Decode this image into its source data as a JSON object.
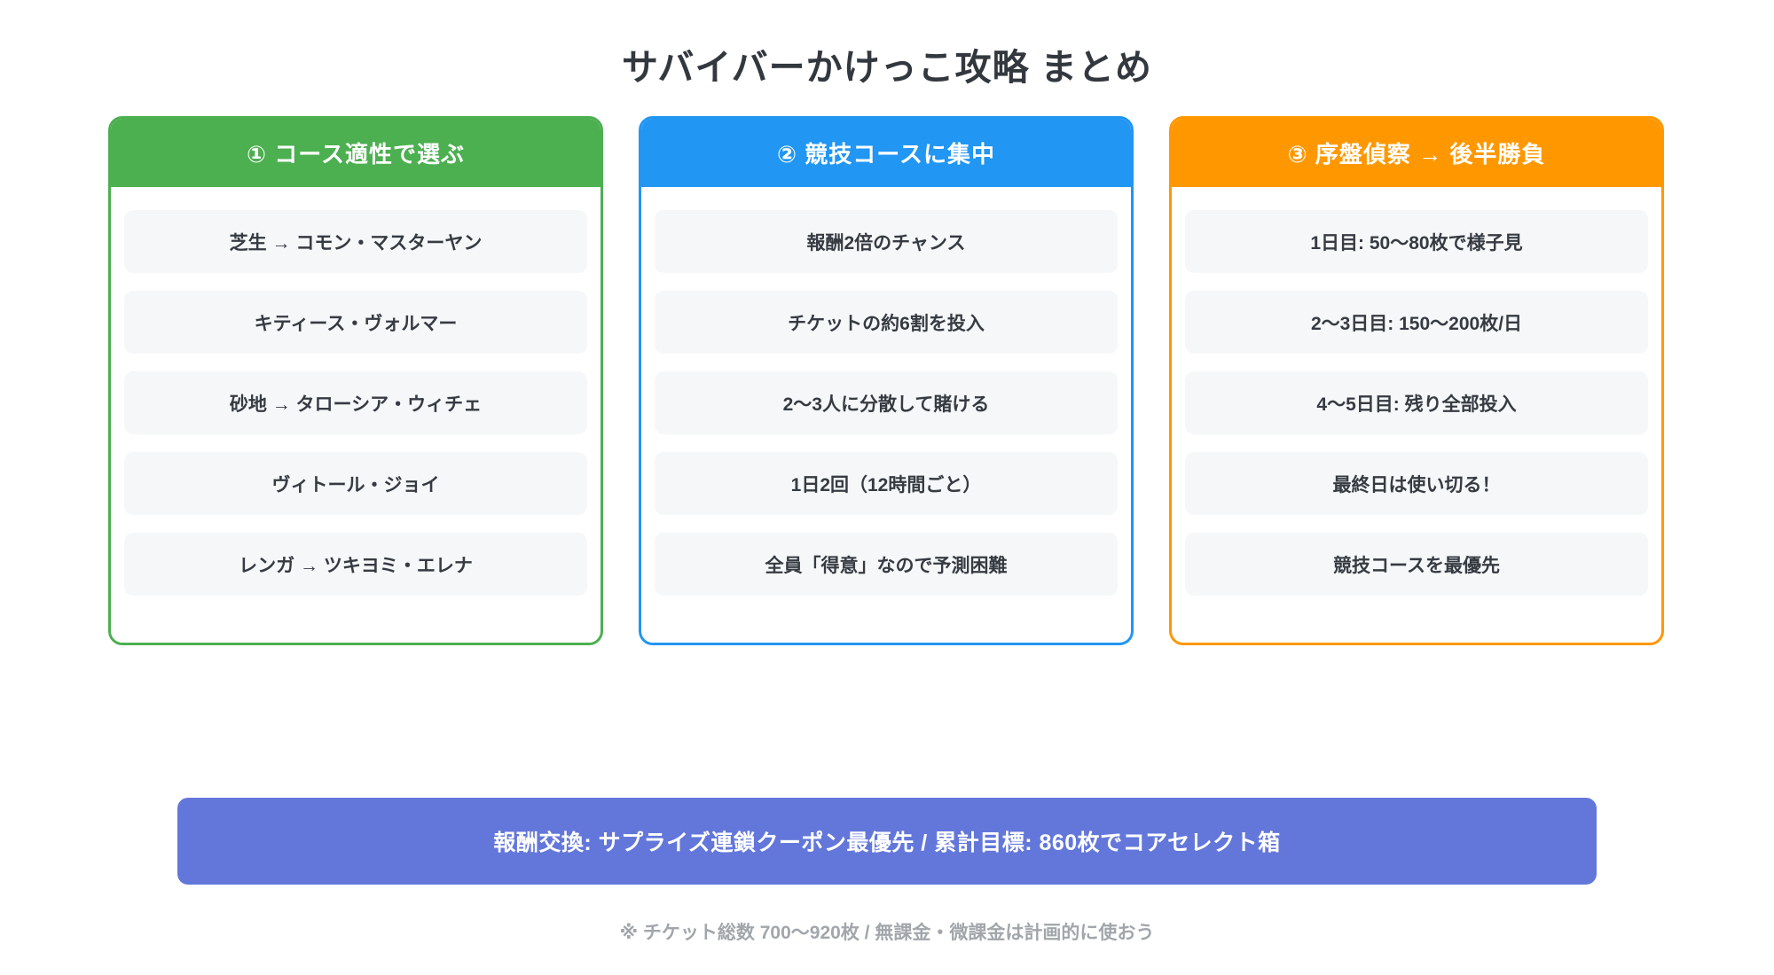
{
  "title": "サバイバーかけっこ攻略 まとめ",
  "colors": {
    "card1_accent": "#4CAF50",
    "card2_accent": "#2196F3",
    "card3_accent": "#FF9800",
    "banner_bg": "#6377DB",
    "item_bg": "#F6F7F9",
    "title_text": "#33383F",
    "item_text": "#363B42",
    "footnote_text": "#A2A6AB"
  },
  "cards": [
    {
      "title": "① コース適性で選ぶ",
      "color": "#4CAF50",
      "items": [
        "芝生 → コモン・マスターヤン",
        "キティース・ヴォルマー",
        "砂地 → タローシア・ウィチェ",
        "ヴィトール・ジョイ",
        "レンガ → ツキヨミ・エレナ"
      ]
    },
    {
      "title": "② 競技コースに集中",
      "color": "#2196F3",
      "items": [
        "報酬2倍のチャンス",
        "チケットの約6割を投入",
        "2〜3人に分散して賭ける",
        "1日2回（12時間ごと）",
        "全員「得意」なので予測困難"
      ]
    },
    {
      "title": "③ 序盤偵察 → 後半勝負",
      "color": "#FF9800",
      "items": [
        "1日目: 50〜80枚で様子見",
        "2〜3日目: 150〜200枚/日",
        "4〜5日目: 残り全部投入",
        "最終日は使い切る！",
        "競技コースを最優先"
      ]
    }
  ],
  "banner": {
    "text": "報酬交換: サプライズ連鎖クーポン最優先 / 累計目標: 860枚でコアセレクト箱"
  },
  "footnote": "※ チケット総数 700〜920枚 / 無課金・微課金は計画的に使おう"
}
